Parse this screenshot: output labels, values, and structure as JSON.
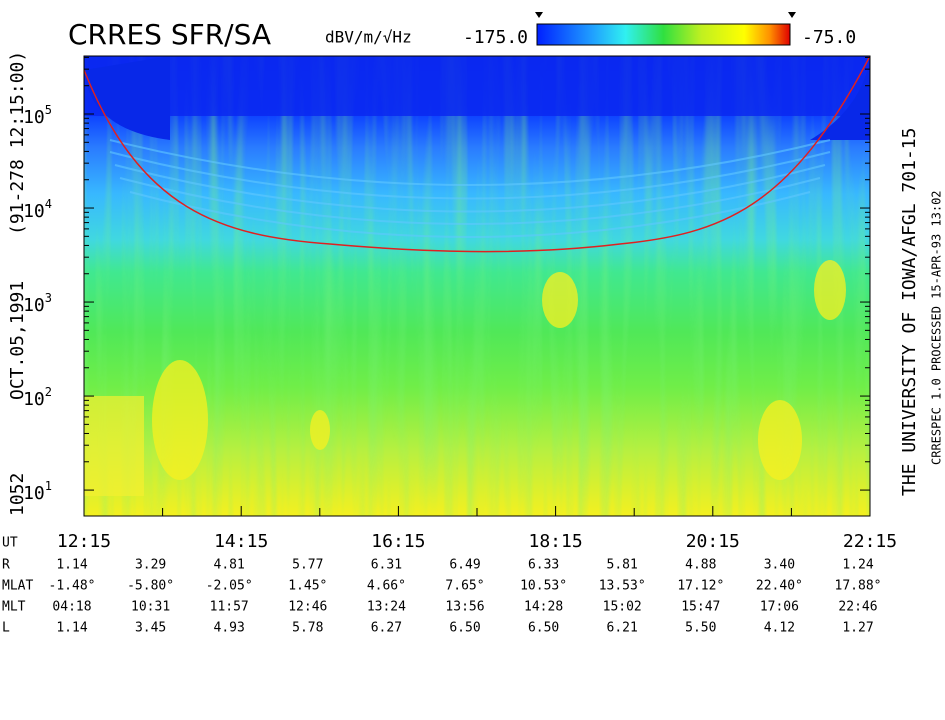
{
  "chart_data": {
    "type": "spectrogram",
    "title": "CRRES SFR/SA",
    "colorbar": {
      "unit": "dBV/m/√Hz",
      "min": {
        "value": -175,
        "label": "-175.0"
      },
      "max": {
        "value": -75,
        "label": "-75.0"
      }
    },
    "log_y": true,
    "ylim": [
      5.3,
      414000
    ],
    "yticks": [
      {
        "value": 10,
        "label": "10",
        "exponent": "1"
      },
      {
        "value": 100,
        "label": "10",
        "exponent": "2"
      },
      {
        "value": 1000,
        "label": "10",
        "exponent": "3"
      },
      {
        "value": 10000,
        "label": "10",
        "exponent": "4"
      },
      {
        "value": 100000,
        "label": "10",
        "exponent": "5"
      }
    ],
    "xlim": [
      12.25,
      22.25
    ],
    "xticks": [
      {
        "value": 12.25,
        "label": "12:15"
      },
      {
        "value": 14.25,
        "label": "14:15"
      },
      {
        "value": 16.25,
        "label": "16:15"
      },
      {
        "value": 18.25,
        "label": "18:15"
      },
      {
        "value": 20.25,
        "label": "20:15"
      },
      {
        "value": 22.25,
        "label": "22:15"
      }
    ],
    "left_labels": [
      "1052",
      "OCT.05,1991",
      "(91-278 12:15:00)"
    ],
    "right_label": "THE UNIVERSITY OF IOWA/AFGL 701-15",
    "processing_label": "CRRESPEC 1.0   PROCESSED 15-APR-93  13:02",
    "ephemeris": {
      "row_labels": [
        "UT",
        "R",
        "MLAT",
        "MLT",
        "L"
      ],
      "R": [
        "1.14",
        "3.29",
        "4.81",
        "5.77",
        "6.31",
        "6.49",
        "6.33",
        "5.81",
        "4.88",
        "3.40",
        "1.24"
      ],
      "MLAT": [
        "-1.48°",
        "-5.80°",
        "-2.05°",
        "1.45°",
        "4.66°",
        "7.65°",
        "10.53°",
        "13.53°",
        "17.12°",
        "22.40°",
        "17.88°"
      ],
      "MLT": [
        "04:18",
        "10:31",
        "11:57",
        "12:46",
        "13:24",
        "13:56",
        "14:28",
        "15:02",
        "15:47",
        "17:06",
        "22:46"
      ],
      "L": [
        "1.14",
        "3.45",
        "4.93",
        "5.78",
        "6.27",
        "6.50",
        "6.50",
        "6.21",
        "5.50",
        "4.12",
        "1.27"
      ]
    }
  }
}
